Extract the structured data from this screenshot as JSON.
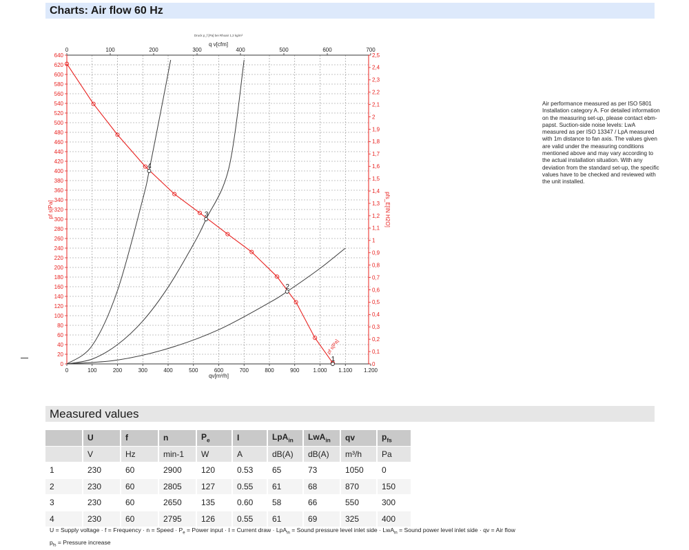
{
  "headings": {
    "charts": "Charts: Air flow 60 Hz",
    "measured": "Measured values"
  },
  "note": "Air performance measured as per ISO 5801 Installation category A. For detailed information on the measuring set-up, please contact ebm-papst. Suction-side noise levels: LwA measured as per ISO 13347 / LpA measured with 1m distance to fan axis. The values given are valid under the measuring conditions mentioned above and may vary according to the actual installation situation. With any deviation from the standard set-up, the specific values have to be checked and reviewed with the unit installed.",
  "chart_data": {
    "type": "line",
    "title": "Druck p_f [Pa] bei Rhoair 1,2 kg/m³",
    "xlabel": "qv[m³/h]",
    "x2label": "q v[cfm]",
    "ylabel": "pf s[Pa]",
    "y2label": "pfs_E[IN H2O]",
    "xlim": [
      0,
      1200
    ],
    "x2lim": [
      0,
      700
    ],
    "ylim": [
      0,
      640
    ],
    "y2lim": [
      0,
      2.5
    ],
    "x_ticks": [
      "0",
      "100",
      "200",
      "300",
      "400",
      "500",
      "600",
      "700",
      "800",
      "900",
      "1.000",
      "1.100",
      "1.200"
    ],
    "x2_ticks": [
      "0",
      "100",
      "200",
      "300",
      "400",
      "500",
      "600",
      "700"
    ],
    "y_ticks": [
      "0",
      "20",
      "40",
      "60",
      "80",
      "100",
      "120",
      "140",
      "160",
      "180",
      "200",
      "220",
      "240",
      "260",
      "280",
      "300",
      "320",
      "340",
      "360",
      "380",
      "400",
      "420",
      "440",
      "460",
      "480",
      "500",
      "520",
      "540",
      "560",
      "580",
      "600",
      "620",
      "640"
    ],
    "y2_ticks": [
      "0",
      "0,1",
      "0,2",
      "0,3",
      "0,4",
      "0,5",
      "0,6",
      "0,7",
      "0,8",
      "0,9",
      "1",
      "1,1",
      "1,2",
      "1,3",
      "1,4",
      "1,5",
      "1,6",
      "1,7",
      "1,8",
      "1,9",
      "2",
      "2,1",
      "2,2",
      "2,3",
      "2,4",
      "2,5"
    ],
    "grid": true,
    "series": [
      {
        "name": "pf s[Pa]",
        "color": "#e8201e",
        "marker": "circle",
        "x": [
          0,
          105,
          200,
          310,
          425,
          525,
          635,
          730,
          830,
          905,
          980,
          1050
        ],
        "y": [
          622,
          539,
          475,
          409,
          352,
          313,
          269,
          232,
          181,
          128,
          54,
          2
        ]
      },
      {
        "name": "",
        "color": "#3a3a3a",
        "x": [
          0,
          100,
          200,
          300,
          325,
          380,
          410
        ],
        "y": [
          0,
          38,
          152,
          342,
          400,
          548,
          630
        ]
      },
      {
        "name": "",
        "color": "#3a3a3a",
        "x": [
          0,
          100,
          200,
          300,
          400,
          500,
          550,
          640,
          700
        ],
        "y": [
          0,
          10,
          40,
          89,
          159,
          248,
          300,
          406,
          630
        ]
      },
      {
        "name": "",
        "color": "#3a3a3a",
        "x": [
          0,
          200,
          400,
          600,
          800,
          870,
          1000,
          1100
        ],
        "y": [
          0,
          8,
          32,
          71,
          127,
          150,
          198,
          240
        ]
      }
    ],
    "operating_points": [
      {
        "label": "1",
        "x": 1050,
        "y": 0
      },
      {
        "label": "2",
        "x": 870,
        "y": 150
      },
      {
        "label": "3",
        "x": 550,
        "y": 300
      },
      {
        "label": "4",
        "x": 325,
        "y": 400
      }
    ],
    "curve_label": "pf s[Pa]"
  },
  "table": {
    "headers": [
      {
        "main": "",
        "sub": ""
      },
      {
        "main": "U",
        "sub": ""
      },
      {
        "main": "f",
        "sub": ""
      },
      {
        "main": "n",
        "sub": ""
      },
      {
        "main": "P",
        "sub": "e"
      },
      {
        "main": "I",
        "sub": ""
      },
      {
        "main": "LpA",
        "sub": "in"
      },
      {
        "main": "LwA",
        "sub": "in"
      },
      {
        "main": "qv",
        "sub": ""
      },
      {
        "main": "p",
        "sub": "fs"
      }
    ],
    "units": [
      "",
      "V",
      "Hz",
      "min-1",
      "W",
      "A",
      "dB(A)",
      "dB(A)",
      "m³/h",
      "Pa"
    ],
    "rows": [
      [
        "1",
        "230",
        "60",
        "2900",
        "120",
        "0.53",
        "65",
        "73",
        "1050",
        "0"
      ],
      [
        "2",
        "230",
        "60",
        "2805",
        "127",
        "0.55",
        "61",
        "68",
        "870",
        "150"
      ],
      [
        "3",
        "230",
        "60",
        "2650",
        "135",
        "0.60",
        "58",
        "66",
        "550",
        "300"
      ],
      [
        "4",
        "230",
        "60",
        "2795",
        "126",
        "0.55",
        "61",
        "69",
        "325",
        "400"
      ]
    ]
  },
  "legend": {
    "line1_parts": [
      [
        "U = Supply voltage · f = Frequency · n = Speed · P",
        "e",
        " = Power input · I = Current draw · LpA",
        "in",
        " = Sound pressure level inlet side · LwA",
        "in",
        " = Sound power level inlet side · qv = Air flow"
      ]
    ],
    "line2_main": "p",
    "line2_sub": "fs",
    "line2_rest": " = Pressure increase"
  }
}
